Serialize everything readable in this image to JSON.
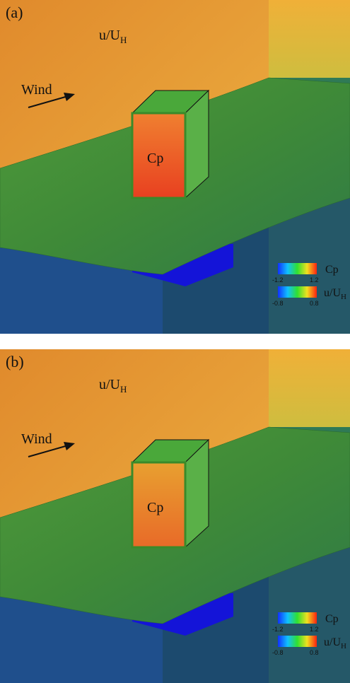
{
  "panels": [
    {
      "label": "(a)",
      "field_label": {
        "main": "u/U",
        "sub": "H"
      },
      "wind": "Wind",
      "cube_label": "Cp",
      "legend": [
        {
          "name": "Cp",
          "min": "-1.2",
          "max": "1.2"
        },
        {
          "name": "u/U",
          "sub": "H",
          "min": "-0.8",
          "max": "0.8"
        }
      ]
    },
    {
      "label": "(b)",
      "field_label": {
        "main": "u/U",
        "sub": "H"
      },
      "wind": "Wind",
      "cube_label": "Cp",
      "legend": [
        {
          "name": "Cp",
          "min": "-1.2",
          "max": "1.2"
        },
        {
          "name": "u/U",
          "sub": "H",
          "min": "-0.8",
          "max": "0.8"
        }
      ]
    }
  ]
}
